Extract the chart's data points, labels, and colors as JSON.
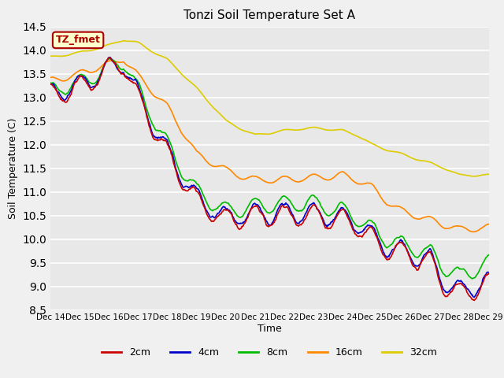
{
  "title": "Tonzi Soil Temperature Set A",
  "xlabel": "Time",
  "ylabel": "Soil Temperature (C)",
  "ylim": [
    8.5,
    14.5
  ],
  "fig_bg": "#f0f0f0",
  "plot_bg": "#e8e8e8",
  "series": {
    "2cm": {
      "color": "#cc0000",
      "lw": 1.2
    },
    "4cm": {
      "color": "#0000cc",
      "lw": 1.2
    },
    "8cm": {
      "color": "#00bb00",
      "lw": 1.2
    },
    "16cm": {
      "color": "#ff8800",
      "lw": 1.2
    },
    "32cm": {
      "color": "#ddcc00",
      "lw": 1.2
    }
  },
  "annotation_text": "TZ_fmet",
  "annotation_color": "#aa0000",
  "annotation_bg": "#ffffcc",
  "legend_labels": [
    "2cm",
    "4cm",
    "8cm",
    "16cm",
    "32cm"
  ],
  "legend_colors": [
    "#cc0000",
    "#0000cc",
    "#00bb00",
    "#ff8800",
    "#ddcc00"
  ],
  "xtick_labels": [
    "Dec 14",
    "Dec 15",
    "Dec 16",
    "Dec 17",
    "Dec 18",
    "Dec 19",
    "Dec 20",
    "Dec 21",
    "Dec 22",
    "Dec 23",
    "Dec 24",
    "Dec 25",
    "Dec 26",
    "Dec 27",
    "Dec 28",
    "Dec 29"
  ],
  "n_days": 15,
  "n_per_day": 48
}
